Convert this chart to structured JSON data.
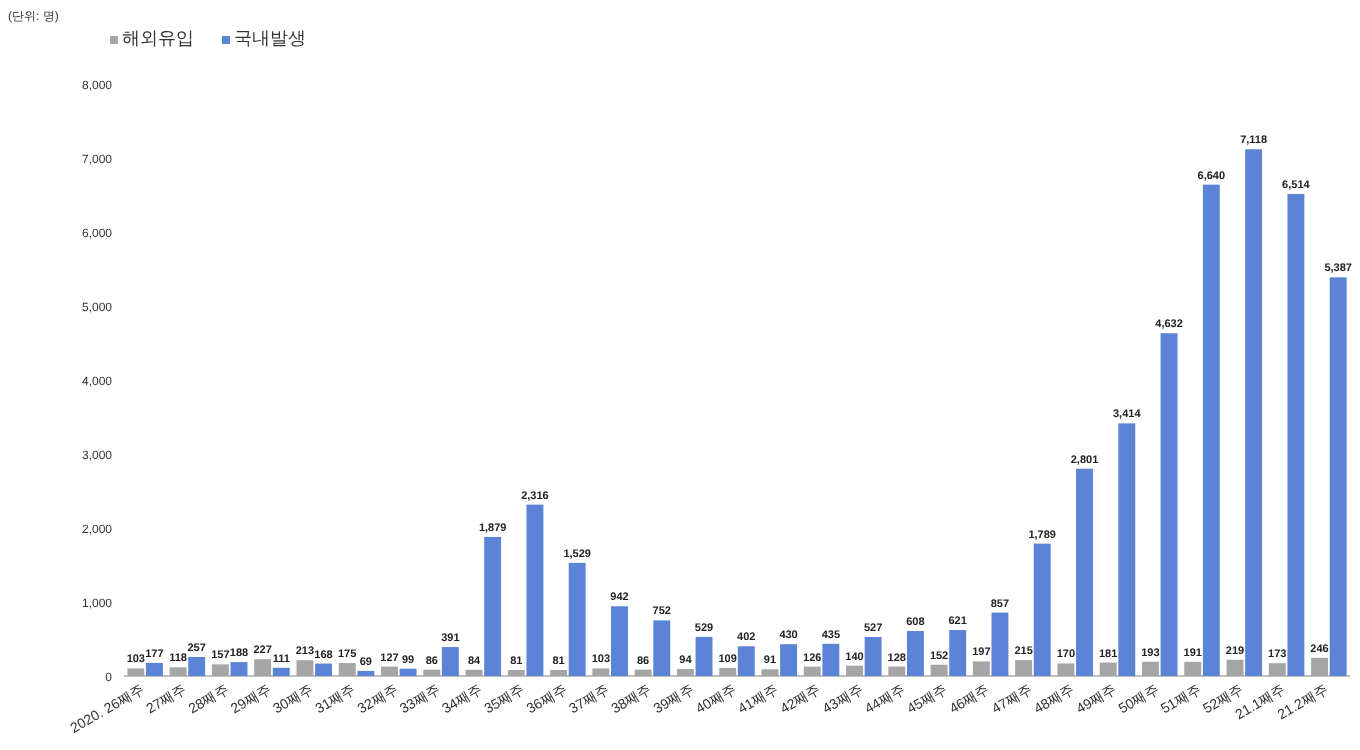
{
  "chart_data": {
    "type": "bar",
    "annotations": [
      "(단위: 명)"
    ],
    "categories": [
      "2020. 26째주",
      "27째주",
      "28째주",
      "29째주",
      "30째주",
      "31째주",
      "32째주",
      "33째주",
      "34째주",
      "35째주",
      "36째주",
      "37째주",
      "38째주",
      "39째주",
      "40째주",
      "41째주",
      "42째주",
      "43째주",
      "44째주",
      "45째주",
      "46째주",
      "47째주",
      "48째주",
      "49째주",
      "50째주",
      "51째주",
      "52째주",
      "21.1째주",
      "21.2째주"
    ],
    "series": [
      {
        "name": "해외유입",
        "color": "#a5a5a5",
        "values": [
          103,
          118,
          157,
          227,
          213,
          175,
          127,
          86,
          84,
          81,
          81,
          103,
          86,
          94,
          109,
          91,
          126,
          140,
          128,
          152,
          197,
          215,
          170,
          181,
          193,
          191,
          219,
          173,
          246
        ]
      },
      {
        "name": "국내발생",
        "color": "#5b84d6",
        "values": [
          177,
          257,
          188,
          111,
          168,
          69,
          99,
          391,
          1879,
          2316,
          1529,
          942,
          752,
          529,
          402,
          430,
          435,
          527,
          608,
          621,
          857,
          1789,
          2801,
          3414,
          4632,
          6640,
          7118,
          6514,
          5387
        ],
        "value_labels": [
          "177",
          "257",
          "188",
          "111",
          "168",
          "69",
          "99",
          "391",
          "1,879",
          "2,316",
          "1,529",
          "942",
          "752",
          "529",
          "402",
          "430",
          "435",
          "527",
          "608",
          "621",
          "857",
          "1,789",
          "2,801",
          "3,414",
          "4,632",
          "6,640",
          "7,118",
          "6,514",
          "5,387"
        ]
      }
    ],
    "ylim": [
      0,
      8000
    ],
    "yticks": [
      {
        "value": 0,
        "label": "0"
      },
      {
        "value": 1000,
        "label": "1,000"
      },
      {
        "value": 2000,
        "label": "2,000"
      },
      {
        "value": 3000,
        "label": "3,000"
      },
      {
        "value": 4000,
        "label": "4,000"
      },
      {
        "value": 5000,
        "label": "5,000"
      },
      {
        "value": 6000,
        "label": "6,000"
      },
      {
        "value": 7000,
        "label": "7,000"
      },
      {
        "value": 8000,
        "label": "8,000"
      }
    ],
    "data_labels": true,
    "grid": false,
    "legend": "top left"
  }
}
